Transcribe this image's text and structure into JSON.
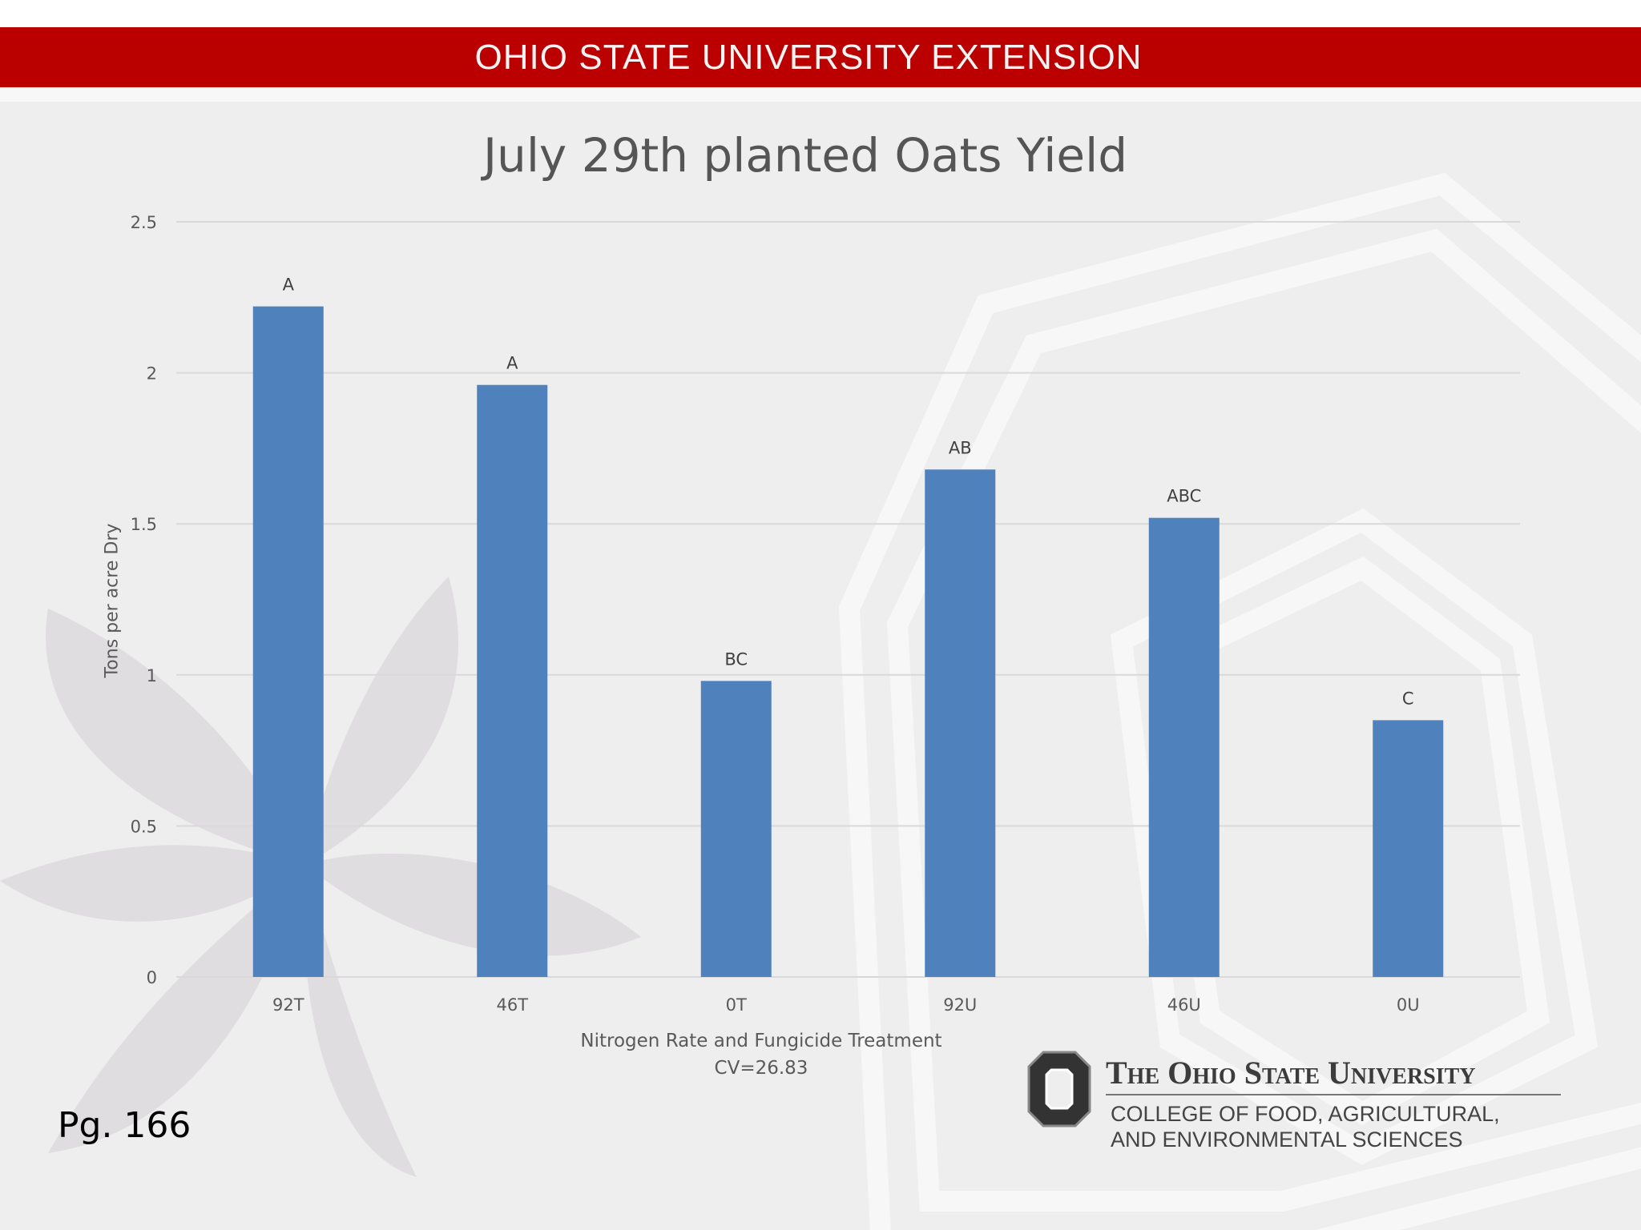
{
  "banner": {
    "text": "OHIO STATE UNIVERSITY EXTENSION",
    "color": "#bb0000"
  },
  "page_number": "Pg. 166",
  "cv_note": "CV=26.83",
  "logo": {
    "name": "The Ohio State University",
    "college_line1": "COLLEGE OF FOOD, AGRICULTURAL,",
    "college_line2": "AND ENVIRONMENTAL SCIENCES",
    "mark_letter": "O"
  },
  "colors": {
    "bar": "#4f81bd",
    "grid": "#d9d9d9",
    "text": "#595959"
  },
  "chart_data": {
    "type": "bar",
    "title": "July 29th planted Oats Yield",
    "xlabel": "Nitrogen Rate and Fungicide Treatment",
    "ylabel": "Tons per acre Dry",
    "ylim": [
      0,
      2.5
    ],
    "yticks": [
      "0",
      "0.5",
      "1",
      "1.5",
      "2",
      "2.5"
    ],
    "grid": true,
    "legend": "none",
    "categories": [
      "92T",
      "46T",
      "0T",
      "92U",
      "46U",
      "0U"
    ],
    "values": [
      2.22,
      1.96,
      0.98,
      1.68,
      1.52,
      0.85
    ],
    "data_labels": [
      "A",
      "A",
      "BC",
      "AB",
      "ABC",
      "C"
    ]
  }
}
